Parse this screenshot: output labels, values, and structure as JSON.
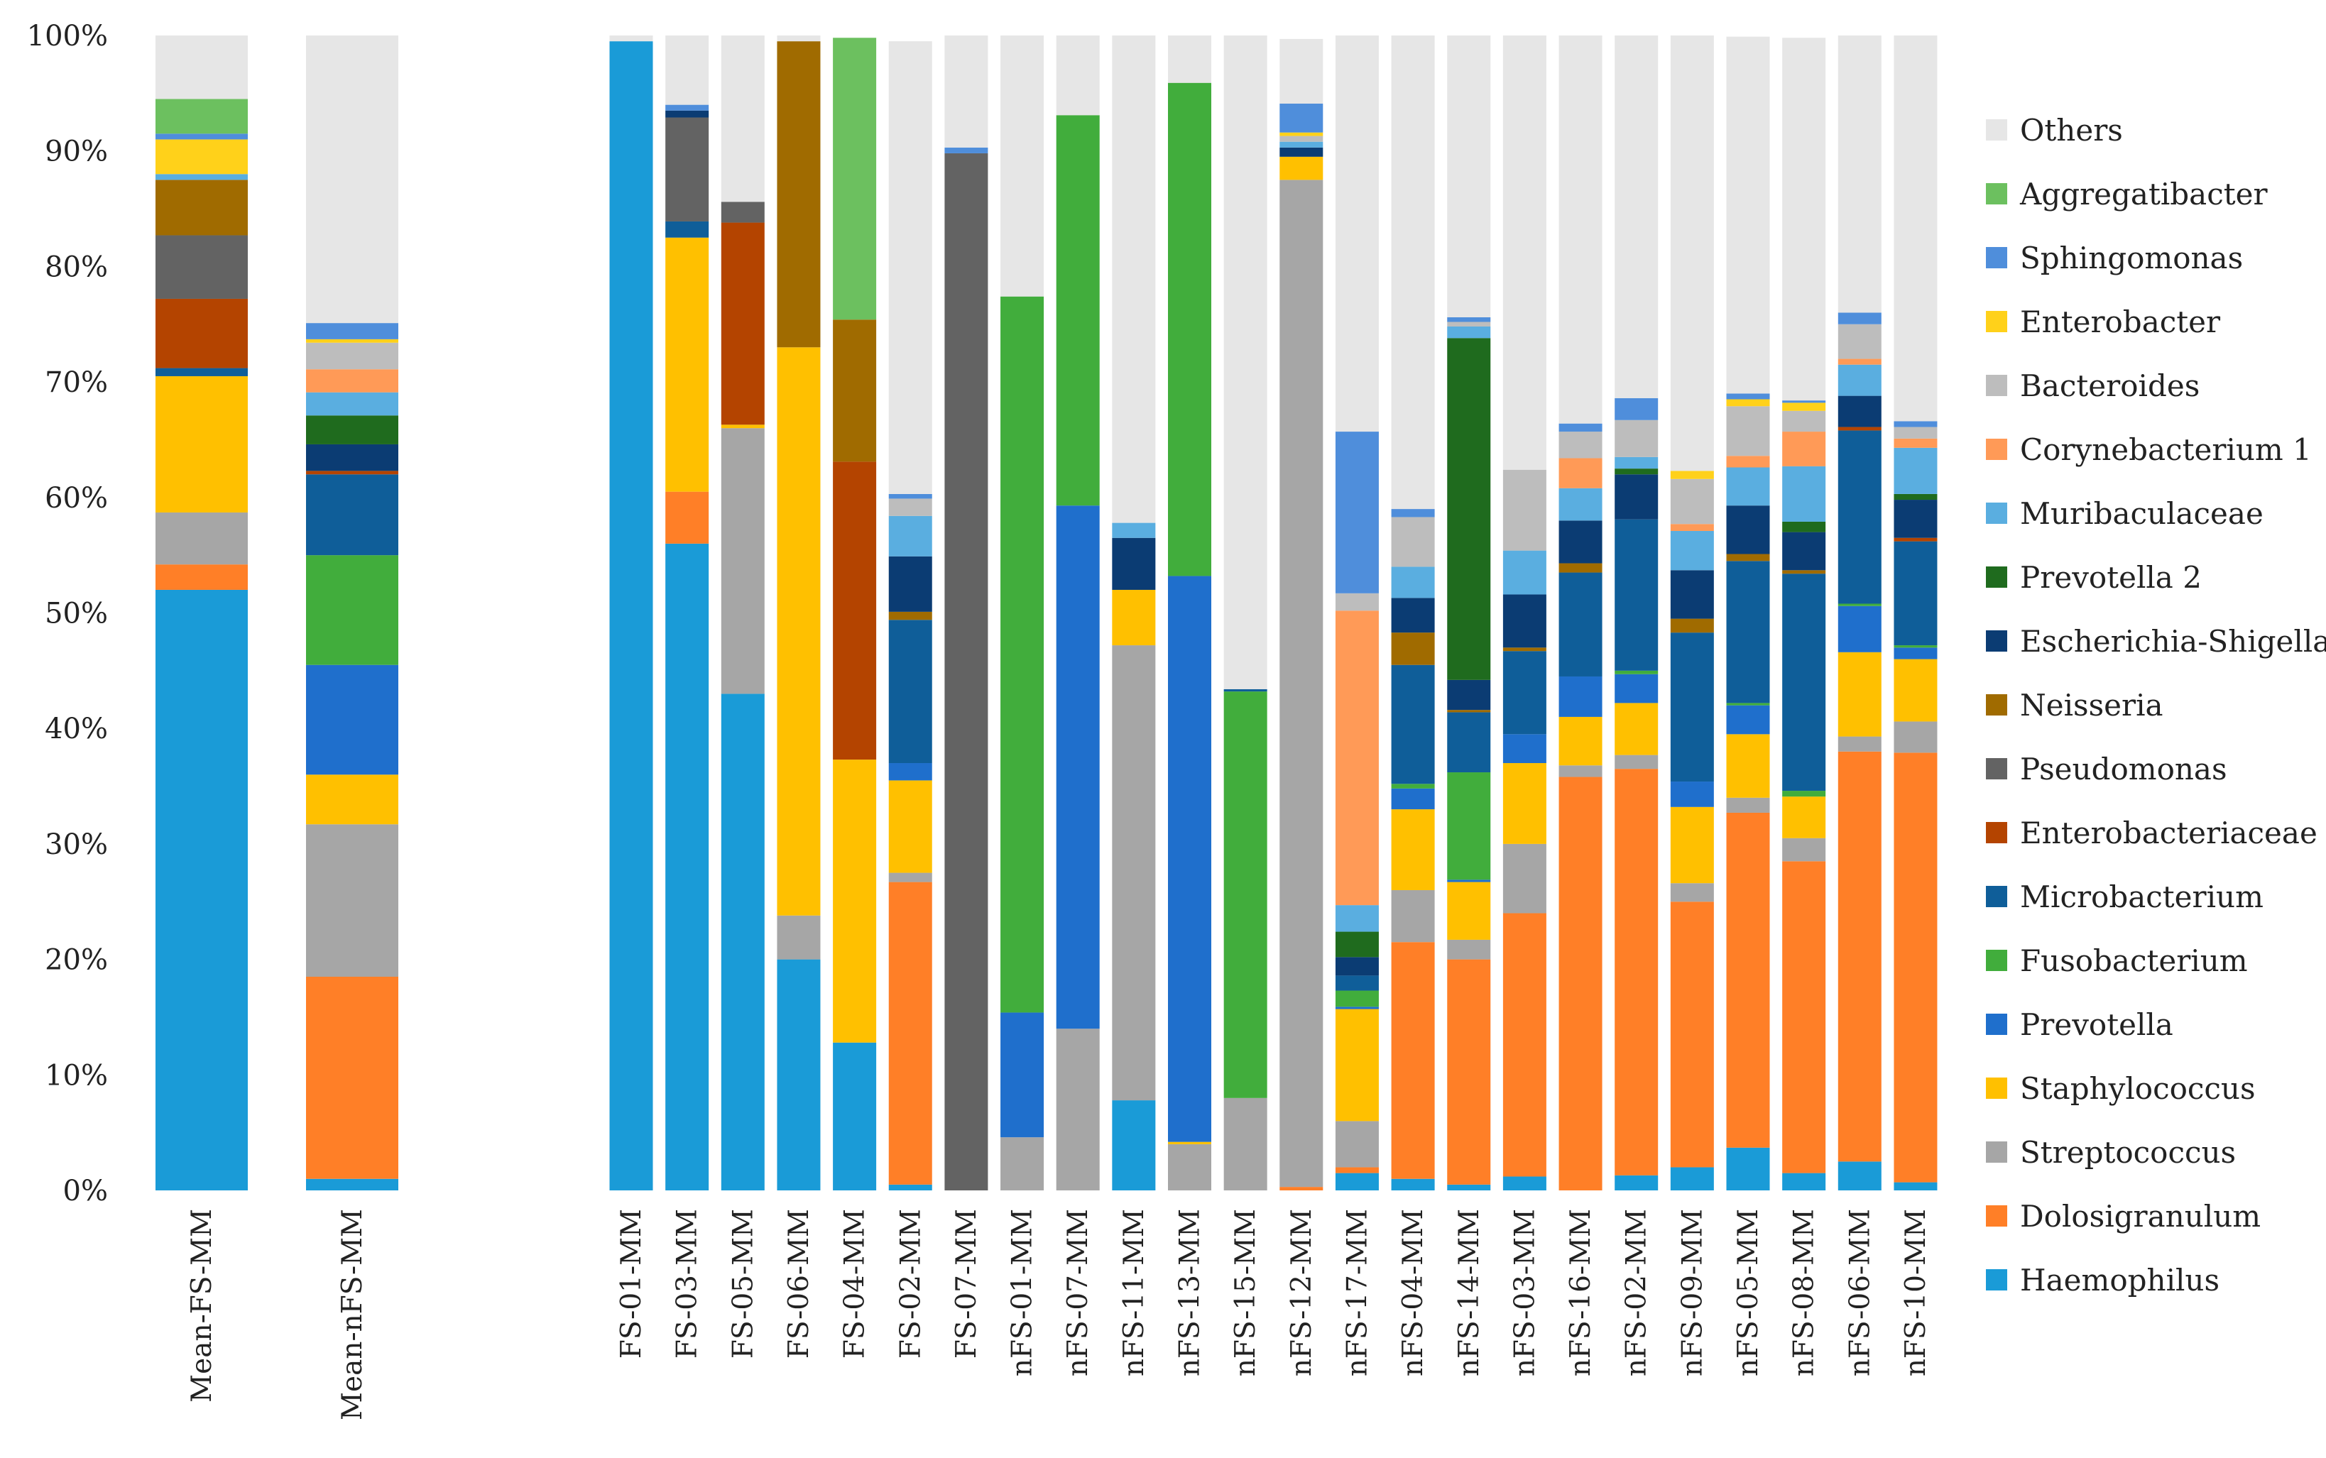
{
  "chart_data": {
    "type": "bar",
    "stacked": true,
    "title": "",
    "xlabel": "",
    "ylabel": "",
    "ylim": [
      0,
      100
    ],
    "y_ticks": [
      "0%",
      "10%",
      "20%",
      "30%",
      "40%",
      "50%",
      "60%",
      "70%",
      "80%",
      "90%",
      "100%"
    ],
    "legend_position": "right",
    "series_bottom_to_top": [
      {
        "name": "Haemophilus",
        "color": "#1A9BD7"
      },
      {
        "name": "Dolosigranulum",
        "color": "#FF7F27"
      },
      {
        "name": "Streptococcus",
        "color": "#A6A6A6"
      },
      {
        "name": "Staphylococcus",
        "color": "#FFC000"
      },
      {
        "name": "Prevotella",
        "color": "#1F6FCC"
      },
      {
        "name": "Fusobacterium",
        "color": "#41AD3C"
      },
      {
        "name": "Microbacterium",
        "color": "#0F5E99"
      },
      {
        "name": "Enterobacteriaceae",
        "color": "#B44400"
      },
      {
        "name": "Pseudomonas",
        "color": "#636363"
      },
      {
        "name": "Neisseria",
        "color": "#A06B00"
      },
      {
        "name": "Escherichia-Shigella",
        "color": "#0B3C73"
      },
      {
        "name": "Prevotella 2",
        "color": "#1F6B1E"
      },
      {
        "name": "Muribaculaceae",
        "color": "#5AAEE0"
      },
      {
        "name": "Corynebacterium 1",
        "color": "#FF9A57"
      },
      {
        "name": "Bacteroides",
        "color": "#BDBDBD"
      },
      {
        "name": "Enterobacter",
        "color": "#FFD11A"
      },
      {
        "name": "Sphingomonas",
        "color": "#4F8EDB"
      },
      {
        "name": "Aggregatibacter",
        "color": "#6CC05F"
      },
      {
        "name": "Others",
        "color": "#E6E6E6"
      }
    ],
    "legend_top_to_bottom": [
      "Others",
      "Aggregatibacter",
      "Sphingomonas",
      "Enterobacter",
      "Bacteroides",
      "Corynebacterium 1",
      "Muribaculaceae",
      "Prevotella 2",
      "Escherichia-Shigella",
      "Neisseria",
      "Pseudomonas",
      "Enterobacteriaceae",
      "Microbacterium",
      "Fusobacterium",
      "Prevotella",
      "Staphylococcus",
      "Streptococcus",
      "Dolosigranulum",
      "Haemophilus"
    ],
    "categories": [
      "Mean-FS-MM",
      "Mean-nFS-MM",
      "FS-01-MM",
      "FS-03-MM",
      "FS-05-MM",
      "FS-06-MM",
      "FS-04-MM",
      "FS-02-MM",
      "FS-07-MM",
      "nFS-01-MM",
      "nFS-07-MM",
      "nFS-11-MM",
      "nFS-13-MM",
      "nFS-15-MM",
      "nFS-12-MM",
      "nFS-17-MM",
      "nFS-04-MM",
      "nFS-14-MM",
      "nFS-03-MM",
      "nFS-16-MM",
      "nFS-02-MM",
      "nFS-09-MM",
      "nFS-05-MM",
      "nFS-08-MM",
      "nFS-06-MM",
      "nFS-10-MM"
    ],
    "series": [
      {
        "name": "Haemophilus",
        "values": [
          52,
          1,
          99.5,
          56,
          43,
          20,
          12.8,
          0.5,
          0,
          0,
          0,
          7.8,
          0,
          0,
          0,
          1.5,
          1,
          0.5,
          1.2,
          0,
          1.3,
          2,
          3.7,
          1.5,
          2.5,
          0.7
        ]
      },
      {
        "name": "Dolosigranulum",
        "values": [
          2.2,
          17.5,
          0,
          4.5,
          0,
          0,
          0,
          26.2,
          0,
          0,
          0,
          0,
          0,
          0,
          0.3,
          0.5,
          20.5,
          19.5,
          22.8,
          35.8,
          35.2,
          23,
          29,
          27,
          35.5,
          37.2
        ]
      },
      {
        "name": "Streptococcus",
        "values": [
          4.5,
          13.2,
          0,
          0,
          23,
          3.8,
          0,
          0.8,
          0,
          4.6,
          14,
          39.4,
          4,
          8,
          87.2,
          4,
          4.5,
          1.7,
          6,
          1,
          1.2,
          1.6,
          1.3,
          2,
          1.3,
          2.7
        ]
      },
      {
        "name": "Staphylococcus",
        "values": [
          11.8,
          4.3,
          0,
          22,
          0.3,
          49.2,
          24.5,
          8,
          0,
          0,
          0,
          4.8,
          0.2,
          0,
          2,
          9.7,
          7,
          5,
          7,
          4.2,
          4.5,
          6.6,
          5.5,
          3.6,
          7.3,
          5.4
        ]
      },
      {
        "name": "Prevotella",
        "values": [
          0,
          9.5,
          0,
          0,
          0,
          0,
          0,
          1.5,
          0,
          10.8,
          45.3,
          0,
          49,
          0,
          0,
          0.2,
          1.8,
          0.2,
          2.5,
          3.5,
          2.5,
          2.2,
          2.5,
          0,
          4,
          1
        ]
      },
      {
        "name": "Fusobacterium",
        "values": [
          0,
          9.5,
          0,
          0,
          0,
          0,
          0,
          0,
          0,
          62,
          33.8,
          0,
          42.7,
          35.2,
          0,
          1.4,
          0.4,
          9.3,
          0,
          0,
          0.3,
          0,
          0.2,
          0.5,
          0.2,
          0.2
        ]
      },
      {
        "name": "Microbacterium",
        "values": [
          0.7,
          7,
          0,
          1.4,
          0,
          0,
          0,
          12.4,
          0,
          0,
          0,
          0,
          0,
          0.2,
          0,
          1.3,
          10.3,
          5.2,
          7.2,
          9,
          13.1,
          12.9,
          12.3,
          18.8,
          15,
          9
        ]
      },
      {
        "name": "Enterobacteriaceae",
        "values": [
          6,
          0.3,
          0,
          0,
          17.5,
          0,
          25.8,
          0,
          0,
          0,
          0,
          0,
          0,
          0,
          0,
          0,
          0,
          0,
          0,
          0,
          0,
          0,
          0,
          0,
          0.3,
          0.3
        ]
      },
      {
        "name": "Pseudomonas",
        "values": [
          5.5,
          0,
          0,
          9,
          1.8,
          0,
          0,
          0,
          89.8,
          0,
          0,
          0,
          0,
          0,
          0,
          0,
          0,
          0,
          0,
          0,
          0,
          0,
          0,
          0,
          0,
          0
        ]
      },
      {
        "name": "Neisseria",
        "values": [
          4.8,
          0,
          0,
          0,
          0,
          26.5,
          12.3,
          0.7,
          0,
          0,
          0,
          0,
          0,
          0,
          0,
          0,
          2.8,
          0.2,
          0.3,
          0.8,
          0,
          1.2,
          0.6,
          0.3,
          0,
          0
        ]
      },
      {
        "name": "Escherichia-Shigella",
        "values": [
          0,
          2.3,
          0,
          0.6,
          0,
          0,
          0,
          4.8,
          0,
          0,
          0,
          4.5,
          0,
          0,
          0.8,
          1.6,
          3,
          2.6,
          4.6,
          3.7,
          3.9,
          4.2,
          4.2,
          3.3,
          2.7,
          3.3
        ]
      },
      {
        "name": "Prevotella 2",
        "values": [
          0,
          2.5,
          0,
          0,
          0,
          0,
          0,
          0,
          0,
          0,
          0,
          0,
          0,
          0,
          0,
          2.2,
          0,
          29.6,
          0,
          0,
          0.5,
          0,
          0,
          0.9,
          0,
          0.5
        ]
      },
      {
        "name": "Muribaculaceae",
        "values": [
          0.5,
          2,
          0,
          0,
          0,
          0,
          0,
          3.5,
          0,
          0,
          0,
          1.3,
          0,
          0,
          0.5,
          2.3,
          2.7,
          1,
          3.8,
          2.8,
          1,
          3.4,
          3.3,
          4.8,
          2.7,
          4
        ]
      },
      {
        "name": "Corynebacterium 1",
        "values": [
          0,
          2,
          0,
          0,
          0,
          0,
          0,
          0,
          0,
          0,
          0,
          0,
          0,
          0,
          0,
          25.5,
          0,
          0,
          0,
          2.6,
          0,
          0.6,
          1,
          3,
          0.5,
          0.8
        ]
      },
      {
        "name": "Bacteroides",
        "values": [
          0,
          2.3,
          0,
          0,
          0,
          0,
          0,
          1.5,
          0,
          0,
          0,
          0,
          0,
          0,
          0.5,
          1.5,
          4.3,
          0.4,
          7,
          2.3,
          3.2,
          3.9,
          4.3,
          1.8,
          3,
          1
        ]
      },
      {
        "name": "Enterobacter",
        "values": [
          3,
          0.3,
          0,
          0,
          0,
          0,
          0,
          0,
          0,
          0,
          0,
          0,
          0,
          0,
          0.3,
          0,
          0,
          0,
          0,
          0,
          0,
          0.7,
          0.6,
          0.7,
          0,
          0
        ]
      },
      {
        "name": "Sphingomonas",
        "values": [
          0.5,
          1.4,
          0,
          0.5,
          0,
          0,
          0,
          0.4,
          0.5,
          0,
          0,
          0,
          0,
          0,
          2.5,
          14,
          0.7,
          0.4,
          0,
          0.7,
          1.9,
          0,
          0.5,
          0.2,
          1,
          0.5
        ]
      },
      {
        "name": "Aggregatibacter",
        "values": [
          3,
          0,
          0,
          0,
          0,
          0,
          24.4,
          0,
          0,
          0,
          0,
          0,
          0,
          0,
          0,
          0,
          0,
          0,
          0,
          0,
          0,
          0,
          0,
          0,
          0,
          0
        ]
      },
      {
        "name": "Others",
        "values": [
          5.5,
          25,
          0.5,
          6,
          14.4,
          0.5,
          0,
          39.2,
          9.7,
          22.6,
          6.9,
          42.2,
          4.1,
          56.6,
          5.6,
          34.3,
          41,
          24.4,
          37.6,
          33.6,
          31.4,
          37.7,
          30.9,
          31.4,
          24,
          33.4
        ]
      }
    ]
  }
}
